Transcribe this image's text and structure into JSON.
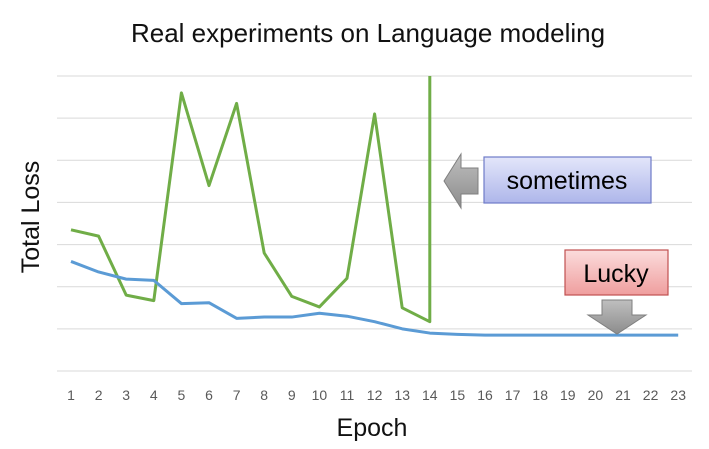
{
  "chart_data": {
    "type": "line",
    "title": "Real experiments on Language modeling",
    "xlabel": "Epoch",
    "ylabel": "Total Loss",
    "categories": [
      "1",
      "2",
      "3",
      "4",
      "5",
      "6",
      "7",
      "8",
      "9",
      "10",
      "11",
      "12",
      "13",
      "14",
      "15",
      "16",
      "17",
      "18",
      "19",
      "20",
      "21",
      "22",
      "23"
    ],
    "ylim": [
      0,
      7
    ],
    "grid": true,
    "series": [
      {
        "color": "#70ad47",
        "values": [
          3.35,
          3.2,
          1.8,
          1.67,
          6.6,
          4.4,
          6.35,
          2.8,
          1.77,
          1.52,
          2.2,
          6.1,
          1.5,
          1.17,
          null,
          null,
          null,
          null,
          null,
          null,
          null,
          null,
          null
        ],
        "spike_at_epoch": "14",
        "spike_to": 7
      },
      {
        "color": "#5b9bd5",
        "values": [
          2.6,
          2.35,
          2.18,
          2.15,
          1.6,
          1.62,
          1.25,
          1.28,
          1.28,
          1.37,
          1.3,
          1.17,
          1.0,
          0.9,
          0.87,
          0.85,
          0.85,
          0.85,
          0.85,
          0.85,
          0.85,
          0.85,
          0.85
        ]
      }
    ],
    "annotations": [
      {
        "text": "sometimes",
        "box_color": "#c5cbf0",
        "arrow": "left",
        "points_to_epoch": "14"
      },
      {
        "text": "Lucky",
        "box_color": "#f4b6b6",
        "arrow": "down",
        "points_to_epoch": "21"
      }
    ]
  }
}
